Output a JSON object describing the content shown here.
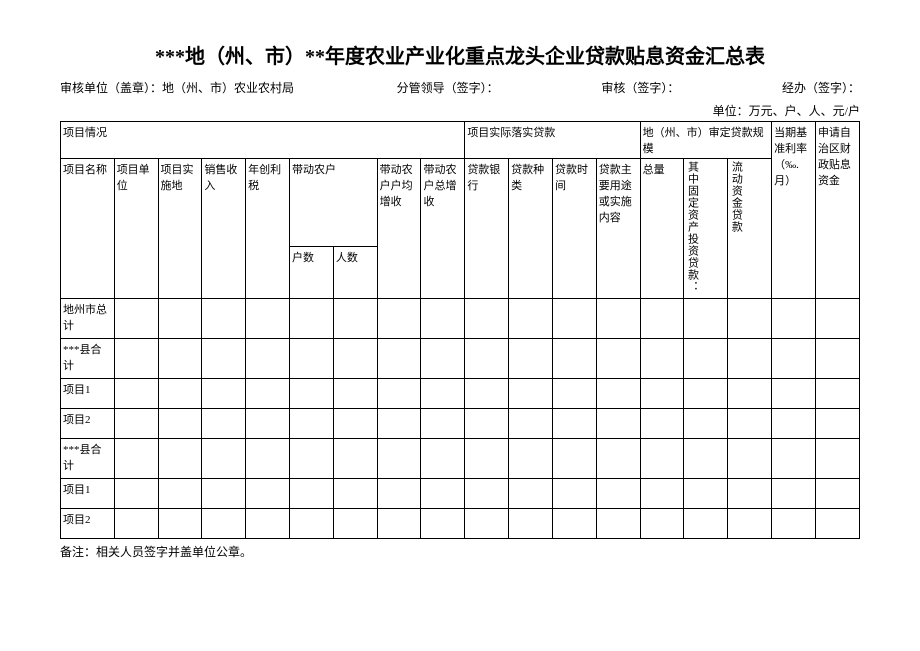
{
  "title": "***地（州、市）**年度农业产业化重点龙头企业贷款贴息资金汇总表",
  "meta": {
    "audit_unit": "审核单位（盖章）：地（州、市）农业农村局",
    "leader": "分管领导（签字）：",
    "review": "审核（签字）：",
    "handler": "经办（签字）："
  },
  "unit_line": "单位：万元、户、人、元/户",
  "headers": {
    "group1": "项目情况",
    "group2": "项目实际落实贷款",
    "group3": "地（州、市）审定贷款规模",
    "proj_name": "项目名称",
    "proj_unit": "项目单位",
    "proj_place": "项目实施地",
    "sales": "销售收入",
    "profit_tax": "年创利税",
    "drive_farmer": "带动农户",
    "households": "户数",
    "persons": "人数",
    "avg_income": "带动农户户均增收",
    "total_income": "带动农户总增收",
    "loan_bank": "贷款银行",
    "loan_type": "贷款种类",
    "loan_time": "贷款时间",
    "loan_purpose": "贷款主要用途或实施内容",
    "total_amount": "总量",
    "fixed_invest": "其中固定资产投资贷款：",
    "liquid_loan": "流动资金贷款",
    "base_rate": "当期基准利率（‰.月）",
    "apply_fund": "申请自治区财政贴息资金"
  },
  "rows": {
    "r1": "地州市总计",
    "r2": "***县合计",
    "r3": "项目1",
    "r4": "项目2",
    "r5": "***县合计",
    "r6": "项目1",
    "r7": "项目2"
  },
  "footnote": "备注：相关人员签字并盖单位公章。"
}
